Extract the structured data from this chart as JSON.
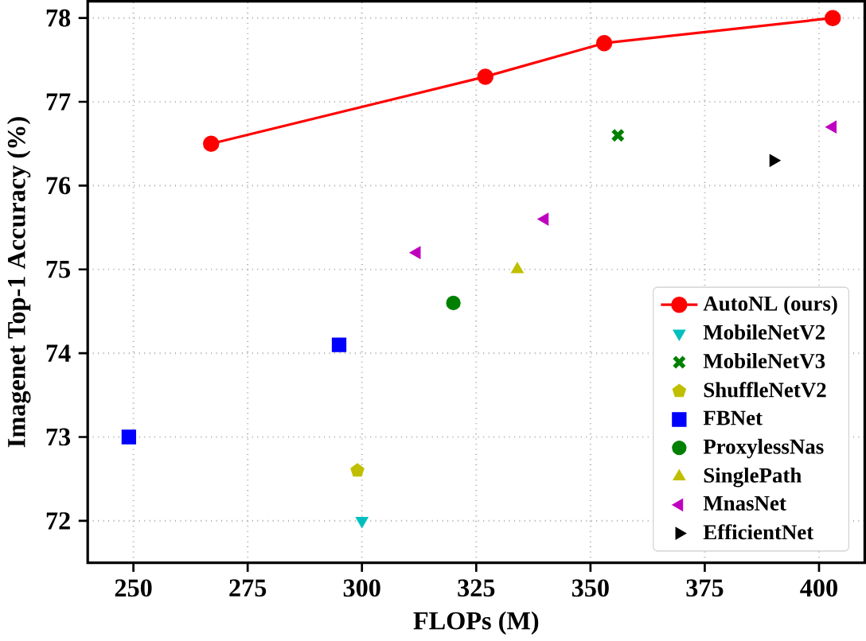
{
  "chart_data": {
    "type": "scatter",
    "xlabel": "FLOPs (M)",
    "ylabel": "Imagenet Top-1 Accuracy (%)",
    "xlim": [
      240,
      410
    ],
    "ylim": [
      71.5,
      78.2
    ],
    "xticks": [
      250,
      275,
      300,
      325,
      350,
      375,
      400
    ],
    "yticks": [
      72,
      73,
      74,
      75,
      76,
      77,
      78
    ],
    "grid": true,
    "legend": "bottom right",
    "series": [
      {
        "name": "AutoNL (ours)",
        "type": "line",
        "marker": "circle",
        "color": "#ff0000",
        "x": [
          267,
          327,
          353,
          403
        ],
        "values": [
          76.5,
          77.3,
          77.7,
          78.0
        ]
      },
      {
        "name": "MobileNetV2",
        "marker": "triangle_down",
        "color": "#00bfbf",
        "x": [
          300
        ],
        "values": [
          72.0
        ]
      },
      {
        "name": "MobileNetV3",
        "marker": "cross",
        "color": "#008000",
        "x": [
          356
        ],
        "values": [
          76.6
        ]
      },
      {
        "name": "ShuffleNetV2",
        "color": "#bfbf00",
        "x": [
          299
        ],
        "values": [
          72.6
        ]
      },
      {
        "name": "FBNet",
        "marker": "square",
        "color": "#0000ff",
        "x": [
          249,
          295
        ],
        "values": [
          73.0,
          74.1
        ]
      },
      {
        "name": "ProxylessNas",
        "marker": "circle",
        "color": "#008000",
        "x": [
          320
        ],
        "values": [
          74.6
        ]
      },
      {
        "name": "SinglePath",
        "marker": "triangle",
        "color": "#bfbf00",
        "x": [
          334
        ],
        "values": [
          75.0
        ]
      },
      {
        "name": "MnasNet",
        "marker": "triangle_left",
        "color": "#bf00bf",
        "x": [
          312,
          340,
          403
        ],
        "values": [
          75.2,
          75.6,
          76.7
        ]
      },
      {
        "name": "EfficientNet",
        "marker": "triangle_right",
        "color": "#000000",
        "x": [
          390
        ],
        "values": [
          76.3
        ]
      }
    ]
  }
}
